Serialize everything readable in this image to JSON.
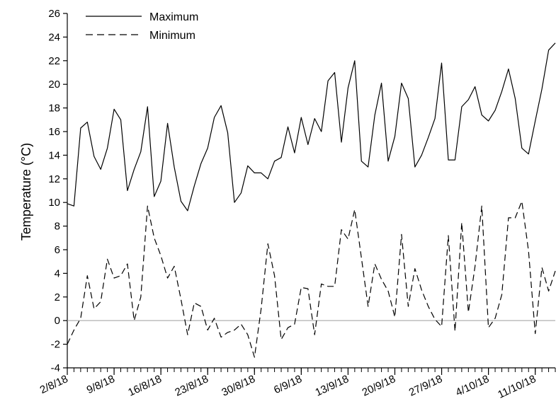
{
  "chart_data": {
    "type": "line",
    "title": "",
    "xlabel": "",
    "ylabel": "Temperature (°C)",
    "ylim": [
      -4,
      26
    ],
    "yticks": [
      -4,
      -2,
      0,
      2,
      4,
      6,
      8,
      10,
      12,
      14,
      16,
      18,
      20,
      22,
      24,
      26
    ],
    "xlim": [
      "2/8/18",
      "14/10/18"
    ],
    "xtick_labels": [
      "2/8/18",
      "9/8/18",
      "16/8/18",
      "23/8/18",
      "30/8/18",
      "6/9/18",
      "13/9/18",
      "20/9/18",
      "27/9/18",
      "4/10/18",
      "11/10/18"
    ],
    "zero_line": true,
    "grid": false,
    "legend_position": "top-left",
    "series": [
      {
        "name": "Maximum",
        "style": "solid",
        "color": "#000000",
        "x": [
          "2/8/18",
          "3/8/18",
          "4/8/18",
          "5/8/18",
          "6/8/18",
          "7/8/18",
          "8/8/18",
          "9/8/18",
          "10/8/18",
          "11/8/18",
          "12/8/18",
          "13/8/18",
          "14/8/18",
          "15/8/18",
          "16/8/18",
          "17/8/18",
          "18/8/18",
          "19/8/18",
          "20/8/18",
          "21/8/18",
          "22/8/18",
          "23/8/18",
          "24/8/18",
          "25/8/18",
          "26/8/18",
          "27/8/18",
          "28/8/18",
          "29/8/18",
          "30/8/18",
          "31/8/18",
          "1/9/18",
          "2/9/18",
          "3/9/18",
          "4/9/18",
          "5/9/18",
          "6/9/18",
          "7/9/18",
          "8/9/18",
          "9/9/18",
          "10/9/18",
          "11/9/18",
          "12/9/18",
          "13/9/18",
          "14/9/18",
          "15/9/18",
          "16/9/18",
          "17/9/18",
          "18/9/18",
          "19/9/18",
          "20/9/18",
          "21/9/18",
          "22/9/18",
          "23/9/18",
          "24/9/18",
          "25/9/18",
          "26/9/18",
          "27/9/18",
          "28/9/18",
          "29/9/18",
          "30/9/18",
          "1/10/18",
          "2/10/18",
          "3/10/18",
          "4/10/18",
          "5/10/18",
          "6/10/18",
          "7/10/18",
          "8/10/18",
          "9/10/18",
          "10/10/18",
          "11/10/18",
          "12/10/18",
          "13/10/18",
          "14/10/18"
        ],
        "values": [
          9.9,
          9.7,
          16.3,
          16.8,
          13.9,
          12.8,
          14.6,
          17.9,
          17.0,
          11.0,
          12.8,
          14.3,
          18.1,
          10.5,
          11.8,
          16.7,
          13.0,
          10.1,
          9.3,
          11.4,
          13.3,
          14.6,
          17.2,
          18.2,
          15.9,
          10.0,
          10.8,
          13.1,
          12.5,
          12.5,
          12.0,
          13.5,
          13.8,
          16.4,
          14.2,
          17.2,
          14.9,
          17.1,
          16.0,
          20.3,
          21.0,
          15.1,
          19.7,
          22.0,
          13.5,
          13.0,
          17.4,
          20.1,
          13.5,
          15.6,
          20.1,
          18.8,
          13.0,
          14.0,
          15.5,
          17.1,
          21.8,
          13.6,
          13.6,
          18.1,
          18.7,
          19.8,
          17.4,
          16.9,
          17.8,
          19.4,
          21.3,
          18.8,
          14.6,
          14.1,
          16.9,
          19.6,
          22.9,
          23.5
        ]
      },
      {
        "name": "Minimum",
        "style": "dashed",
        "color": "#000000",
        "x": [
          "2/8/18",
          "3/8/18",
          "4/8/18",
          "5/8/18",
          "6/8/18",
          "7/8/18",
          "8/8/18",
          "9/8/18",
          "10/8/18",
          "11/8/18",
          "12/8/18",
          "13/8/18",
          "14/8/18",
          "15/8/18",
          "16/8/18",
          "17/8/18",
          "18/8/18",
          "19/8/18",
          "20/8/18",
          "21/8/18",
          "22/8/18",
          "23/8/18",
          "24/8/18",
          "25/8/18",
          "26/8/18",
          "27/8/18",
          "28/8/18",
          "29/8/18",
          "30/8/18",
          "31/8/18",
          "1/9/18",
          "2/9/18",
          "3/9/18",
          "4/9/18",
          "5/9/18",
          "6/9/18",
          "7/9/18",
          "8/9/18",
          "9/9/18",
          "10/9/18",
          "11/9/18",
          "12/9/18",
          "13/9/18",
          "14/9/18",
          "15/9/18",
          "16/9/18",
          "17/9/18",
          "18/9/18",
          "19/9/18",
          "20/9/18",
          "21/9/18",
          "22/9/18",
          "23/9/18",
          "24/9/18",
          "25/9/18",
          "26/9/18",
          "27/9/18",
          "28/9/18",
          "29/9/18",
          "30/9/18",
          "1/10/18",
          "2/10/18",
          "3/10/18",
          "4/10/18",
          "5/10/18",
          "6/10/18",
          "7/10/18",
          "8/10/18",
          "9/10/18",
          "10/10/18",
          "11/10/18",
          "12/10/18",
          "13/10/18",
          "14/10/18"
        ],
        "values": [
          -2.0,
          -0.8,
          0.2,
          3.8,
          1.0,
          1.6,
          5.2,
          3.6,
          3.8,
          4.8,
          0.0,
          2.0,
          9.7,
          7.0,
          5.5,
          3.6,
          4.6,
          1.8,
          -1.2,
          1.5,
          1.2,
          -0.8,
          0.2,
          -1.4,
          -1.0,
          -0.8,
          -0.3,
          -1.2,
          -3.1,
          1.0,
          6.5,
          3.8,
          -1.6,
          -0.6,
          -0.3,
          2.8,
          2.7,
          -1.2,
          3.1,
          2.9,
          2.9,
          7.7,
          6.9,
          9.4,
          5.3,
          1.2,
          4.8,
          3.5,
          2.5,
          0.3,
          7.3,
          1.2,
          4.4,
          2.6,
          1.2,
          0.1,
          -0.5,
          7.2,
          -0.9,
          8.3,
          0.7,
          4.6,
          9.7,
          -0.6,
          0.2,
          2.2,
          8.7,
          8.7,
          10.1,
          5.9,
          -1.1,
          4.5,
          2.5,
          4.2
        ]
      }
    ]
  }
}
